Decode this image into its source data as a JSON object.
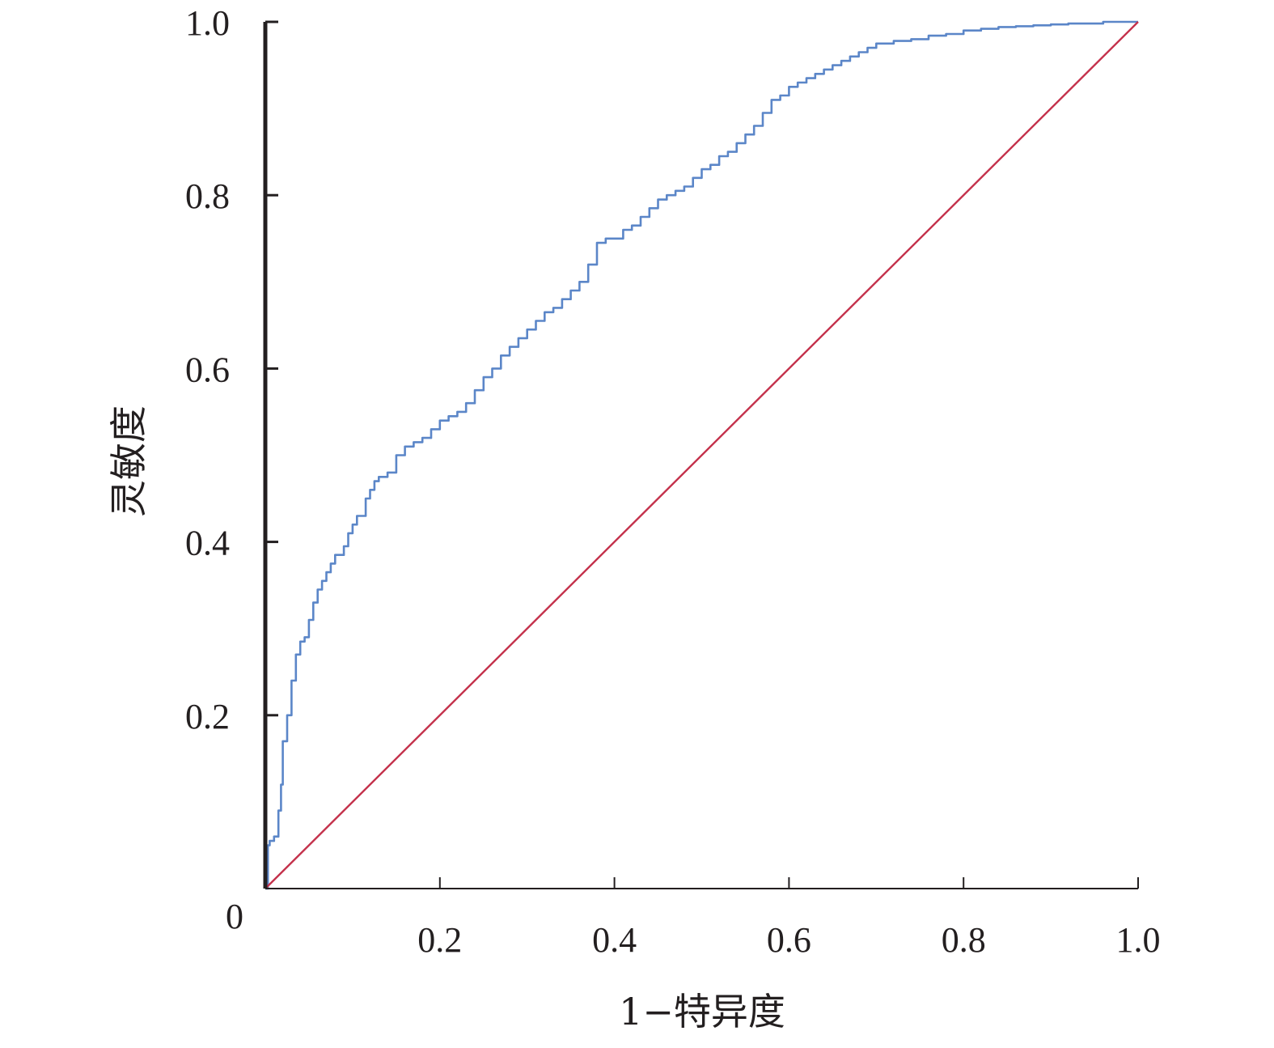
{
  "chart_data": {
    "type": "line",
    "title": "",
    "xlabel": "1−特异度",
    "ylabel": "灵敏度",
    "xlim": [
      0,
      1
    ],
    "ylim": [
      0,
      1
    ],
    "origin_label": "0",
    "x_ticks": [
      {
        "value": 0.2,
        "label": "0.2"
      },
      {
        "value": 0.4,
        "label": "0.4"
      },
      {
        "value": 0.6,
        "label": "0.6"
      },
      {
        "value": 0.8,
        "label": "0.8"
      },
      {
        "value": 1.0,
        "label": "1.0"
      }
    ],
    "y_ticks": [
      {
        "value": 0.2,
        "label": "0.2"
      },
      {
        "value": 0.4,
        "label": "0.4"
      },
      {
        "value": 0.6,
        "label": "0.6"
      },
      {
        "value": 0.8,
        "label": "0.8"
      },
      {
        "value": 1.0,
        "label": "1.0"
      }
    ],
    "grid": false,
    "legend": "none",
    "series": [
      {
        "color": "#5b86c8",
        "step": true,
        "x": [
          0,
          0.003,
          0.005,
          0.01,
          0.015,
          0.018,
          0.02,
          0.025,
          0.03,
          0.035,
          0.04,
          0.045,
          0.05,
          0.055,
          0.06,
          0.065,
          0.07,
          0.075,
          0.08,
          0.09,
          0.095,
          0.1,
          0.105,
          0.115,
          0.12,
          0.125,
          0.13,
          0.14,
          0.15,
          0.16,
          0.17,
          0.18,
          0.19,
          0.2,
          0.21,
          0.22,
          0.23,
          0.24,
          0.25,
          0.26,
          0.27,
          0.28,
          0.29,
          0.3,
          0.31,
          0.32,
          0.33,
          0.34,
          0.35,
          0.36,
          0.37,
          0.38,
          0.39,
          0.4,
          0.41,
          0.42,
          0.43,
          0.44,
          0.45,
          0.46,
          0.47,
          0.48,
          0.49,
          0.5,
          0.51,
          0.52,
          0.53,
          0.54,
          0.55,
          0.56,
          0.57,
          0.58,
          0.59,
          0.6,
          0.61,
          0.62,
          0.63,
          0.64,
          0.65,
          0.66,
          0.67,
          0.68,
          0.69,
          0.7,
          0.72,
          0.74,
          0.76,
          0.78,
          0.8,
          0.82,
          0.84,
          0.86,
          0.88,
          0.9,
          0.92,
          0.94,
          0.96,
          0.98,
          1.0
        ],
        "y": [
          0,
          0.05,
          0.055,
          0.06,
          0.09,
          0.12,
          0.17,
          0.2,
          0.24,
          0.27,
          0.285,
          0.29,
          0.31,
          0.33,
          0.345,
          0.355,
          0.365,
          0.375,
          0.385,
          0.395,
          0.41,
          0.42,
          0.43,
          0.45,
          0.46,
          0.47,
          0.475,
          0.48,
          0.5,
          0.51,
          0.515,
          0.52,
          0.53,
          0.54,
          0.545,
          0.55,
          0.56,
          0.575,
          0.59,
          0.6,
          0.615,
          0.625,
          0.635,
          0.645,
          0.655,
          0.665,
          0.67,
          0.68,
          0.69,
          0.7,
          0.72,
          0.745,
          0.75,
          0.75,
          0.76,
          0.765,
          0.775,
          0.785,
          0.795,
          0.8,
          0.805,
          0.81,
          0.82,
          0.83,
          0.835,
          0.845,
          0.85,
          0.86,
          0.87,
          0.88,
          0.895,
          0.91,
          0.915,
          0.925,
          0.93,
          0.935,
          0.94,
          0.945,
          0.95,
          0.955,
          0.96,
          0.965,
          0.97,
          0.975,
          0.978,
          0.98,
          0.984,
          0.986,
          0.99,
          0.992,
          0.994,
          0.995,
          0.996,
          0.997,
          0.998,
          0.998,
          1.0,
          1.0,
          1.0
        ]
      },
      {
        "color": "#c4314b",
        "step": false,
        "x": [
          0,
          1
        ],
        "y": [
          0,
          1
        ]
      }
    ]
  }
}
